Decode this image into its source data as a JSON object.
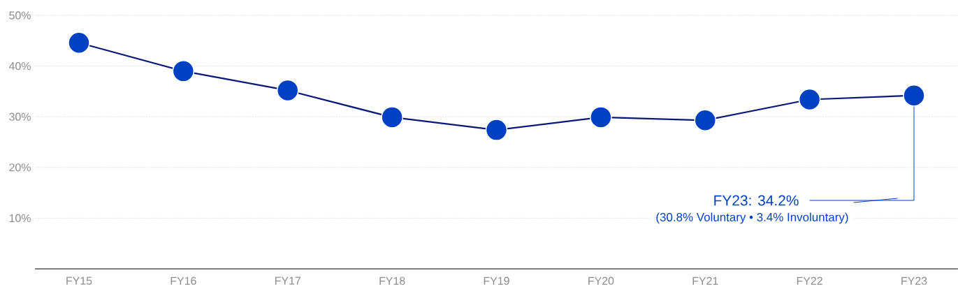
{
  "chart_data": {
    "type": "line",
    "categories": [
      "FY15",
      "FY16",
      "FY17",
      "FY18",
      "FY19",
      "FY20",
      "FY21",
      "FY22",
      "FY23"
    ],
    "series": [
      {
        "color": "#0041c4",
        "values": [
          44.6,
          39.0,
          35.2,
          29.9,
          27.4,
          29.9,
          29.3,
          33.4,
          34.2
        ]
      }
    ],
    "ylim": [
      0,
      50
    ],
    "yticks": [
      {
        "value": 10,
        "label": "10%"
      },
      {
        "value": 20,
        "label": "20%"
      },
      {
        "value": 30,
        "label": "30%"
      },
      {
        "value": 40,
        "label": "40%"
      },
      {
        "value": 50,
        "label": "50%"
      }
    ],
    "grid": "y",
    "marker": "circle",
    "line_style": "solid",
    "annotations": [
      {
        "text": "FY23: 34.2%",
        "x": "FY23",
        "y": 34.2
      },
      "(30.8% Voluntary • 3.4% Involuntary)"
    ]
  }
}
